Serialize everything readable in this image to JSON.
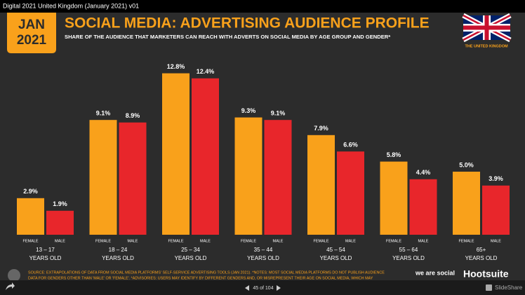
{
  "window": {
    "title": "Digital 2021 United Kingdom (January 2021) v01"
  },
  "slide": {
    "badge_month": "JAN",
    "badge_year": "2021",
    "country": "THE UNITED KINGDOM",
    "source": "SOURCE: EXTRAPOLATIONS OF DATA FROM SOCIAL MEDIA PLATFORMS' SELF-SERVICE ADVERTISING TOOLS (JAN 2021). *NOTES: MOST SOCIAL MEDIA PLATFORMS DO NOT PUBLISH AUDIENCE",
    "source_2": "DATA FOR GENDERS OTHER THAN 'MALE' OR 'FEMALE'. *ADVISORIES: USERS MAY IDENTIFY BY DIFFERENT GENDERS AND, OR MISREPRESENT THEIR AGE ON SOCIAL MEDIA, WHICH MAY",
    "brand_1": "we are social",
    "brand_2": "Hootsuite"
  },
  "chart_data": {
    "type": "bar",
    "title": "SOCIAL MEDIA: ADVERTISING AUDIENCE PROFILE",
    "subtitle": "SHARE OF THE AUDIENCE THAT MARKETERS CAN REACH WITH ADVERTS ON SOCIAL MEDIA BY AGE GROUP AND GENDER*",
    "categories": [
      "13 – 17",
      "18 – 24",
      "25 – 34",
      "35 – 44",
      "45 – 54",
      "55 – 64",
      "65+"
    ],
    "category_suffix": "YEARS OLD",
    "series": [
      {
        "name": "FEMALE",
        "color": "#f9a11b",
        "values": [
          2.9,
          9.1,
          12.8,
          9.3,
          7.9,
          5.8,
          5.0
        ],
        "value_labels": [
          "2.9%",
          "9.1%",
          "12.8%",
          "9.3%",
          "7.9%",
          "5.8%",
          "5.0%"
        ]
      },
      {
        "name": "MALE",
        "color": "#e8262b",
        "values": [
          1.9,
          8.9,
          12.4,
          9.1,
          6.6,
          4.4,
          3.9
        ],
        "value_labels": [
          "1.9%",
          "8.9%",
          "12.4%",
          "9.1%",
          "6.6%",
          "4.4%",
          "3.9%"
        ]
      }
    ]
  },
  "player": {
    "page": "45 of 104",
    "brand": "SlideShare"
  }
}
